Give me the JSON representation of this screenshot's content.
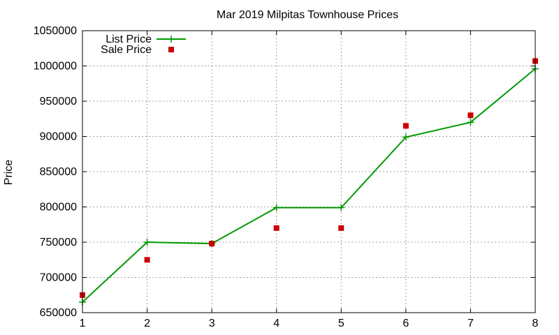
{
  "chart_data": {
    "type": "line",
    "title": "Mar 2019 Milpitas Townhouse Prices",
    "xlabel": "",
    "ylabel": "Price",
    "x": [
      1,
      2,
      3,
      4,
      5,
      6,
      7,
      8
    ],
    "xlim": [
      1,
      8
    ],
    "ylim": [
      650000,
      1050000
    ],
    "xticks": [
      "1",
      "2",
      "3",
      "4",
      "5",
      "6",
      "7",
      "8"
    ],
    "yticks": [
      "650000",
      "700000",
      "750000",
      "800000",
      "850000",
      "900000",
      "950000",
      "1000000",
      "1050000"
    ],
    "grid": true,
    "legend_position": "top-left",
    "series": [
      {
        "name": "List Price",
        "style": "line-with-plus-markers",
        "color": "#009900",
        "values": [
          665000,
          750000,
          748000,
          799000,
          799000,
          899000,
          920000,
          996000
        ]
      },
      {
        "name": "Sale Price",
        "style": "square-markers",
        "color": "#cc0000",
        "values": [
          675000,
          725000,
          748000,
          770000,
          770000,
          915000,
          930000,
          1007000
        ]
      }
    ]
  }
}
